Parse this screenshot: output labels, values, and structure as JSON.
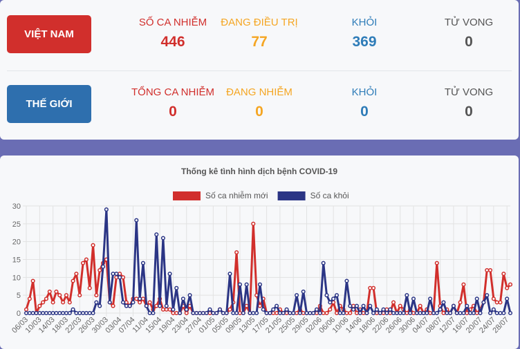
{
  "panel": {
    "rows": [
      {
        "label": "VIỆT NAM",
        "color": "#d12f2c",
        "stats": [
          {
            "label": "SỐ CA NHIỄM",
            "value": 446,
            "color": "#d12f2c"
          },
          {
            "label": "ĐANG ĐIỀU TRỊ",
            "value": 77,
            "color": "#f5a623"
          },
          {
            "label": "KHỎI",
            "value": 369,
            "color": "#2e7cb8"
          },
          {
            "label": "TỬ VONG",
            "value": 0,
            "color": "#555555"
          }
        ]
      },
      {
        "label": "THẾ GIỚI",
        "color": "#2e6fae",
        "stats": [
          {
            "label": "TỔNG CA NHIỄM",
            "value": 0,
            "color": "#d12f2c"
          },
          {
            "label": "ĐANG NHIỄM",
            "value": 0,
            "color": "#f5a623"
          },
          {
            "label": "KHỎI",
            "value": 0,
            "color": "#2e7cb8"
          },
          {
            "label": "TỬ VONG",
            "value": 0,
            "color": "#555555"
          }
        ]
      }
    ]
  },
  "chart_data": {
    "type": "line",
    "title": "Thống kê tình hình dịch bệnh COVID-19",
    "grid": true,
    "legend": "top",
    "ylim": [
      0,
      30
    ],
    "yticks": [
      0,
      5,
      10,
      15,
      20,
      25,
      30
    ],
    "categories": [
      "06/03",
      null,
      null,
      null,
      "10/03",
      null,
      null,
      null,
      "14/03",
      null,
      null,
      null,
      "18/03",
      null,
      null,
      null,
      "22/03",
      null,
      null,
      null,
      "26/03",
      null,
      null,
      null,
      "30/03",
      null,
      null,
      null,
      "03/04",
      null,
      null,
      null,
      "07/04",
      null,
      null,
      null,
      "11/04",
      null,
      null,
      null,
      "15/04",
      null,
      null,
      null,
      "19/04",
      null,
      null,
      null,
      "23/04",
      null,
      null,
      null,
      "27/04",
      null,
      null,
      null,
      "01/05",
      null,
      null,
      null,
      "05/05",
      null,
      null,
      null,
      "09/05",
      null,
      null,
      null,
      "13/05",
      null,
      null,
      null,
      "17/05",
      null,
      null,
      null,
      "21/05",
      null,
      null,
      null,
      "25/05",
      null,
      null,
      null,
      "29/05",
      null,
      null,
      null,
      "02/06",
      null,
      null,
      null,
      "06/06",
      null,
      null,
      null,
      "10/06",
      null,
      null,
      null,
      "14/06",
      null,
      null,
      null,
      "18/06",
      null,
      null,
      null,
      "22/06",
      null,
      null,
      null,
      "26/06",
      null,
      null,
      null,
      "30/06",
      null,
      null,
      null,
      "04/07",
      null,
      null,
      null,
      "08/07",
      null,
      null,
      null,
      "12/07",
      null,
      null,
      null,
      "16/07",
      null,
      null,
      null,
      "20/07",
      null,
      null,
      null,
      "24/07",
      null,
      null,
      null,
      "28/07",
      null
    ],
    "series": [
      {
        "name": "Số ca nhiễm mới",
        "color": "#d12f2c",
        "values": [
          1,
          4,
          9,
          0,
          2,
          3,
          4,
          6,
          3,
          6,
          5,
          3,
          5,
          3,
          9,
          11,
          5,
          14,
          15,
          7,
          19,
          5,
          12,
          14,
          15,
          3,
          2,
          10,
          11,
          10,
          3,
          2,
          4,
          4,
          3,
          4,
          2,
          3,
          1,
          2,
          4,
          1,
          1,
          1,
          0,
          0,
          0,
          2,
          0,
          2,
          0,
          0,
          0,
          0,
          0,
          0,
          0,
          0,
          1,
          0,
          0,
          1,
          3,
          17,
          0,
          0,
          2,
          0,
          25,
          5,
          2,
          4,
          0,
          0,
          0,
          0,
          1,
          0,
          0,
          0,
          0,
          0,
          1,
          0,
          0,
          0,
          0,
          0,
          2,
          0,
          0,
          1,
          3,
          0,
          2,
          1,
          0,
          0,
          2,
          0,
          1,
          0,
          0,
          7,
          7,
          0,
          0,
          0,
          1,
          0,
          3,
          0,
          2,
          1,
          0,
          1,
          0,
          0,
          2,
          0,
          1,
          0,
          0,
          14,
          2,
          0,
          1,
          0,
          2,
          0,
          3,
          8,
          0,
          1,
          2,
          0,
          1,
          3,
          12,
          12,
          4,
          3,
          3,
          11,
          7,
          8
        ]
      },
      {
        "name": "Số ca khỏi",
        "color": "#2b3585",
        "values": [
          0,
          0,
          0,
          0,
          0,
          0,
          0,
          0,
          0,
          0,
          0,
          0,
          0,
          0,
          1,
          0,
          0,
          0,
          0,
          0,
          0,
          3,
          2,
          13,
          29,
          3,
          11,
          11,
          10,
          3,
          2,
          2,
          3,
          26,
          4,
          14,
          2,
          0,
          0,
          22,
          2,
          21,
          2,
          11,
          1,
          7,
          0,
          4,
          1,
          5,
          0,
          0,
          0,
          0,
          0,
          1,
          0,
          0,
          1,
          0,
          0,
          11,
          0,
          0,
          8,
          0,
          8,
          0,
          0,
          0,
          8,
          1,
          0,
          0,
          1,
          2,
          0,
          0,
          1,
          0,
          0,
          5,
          0,
          6,
          0,
          0,
          0,
          1,
          0,
          14,
          5,
          3,
          4,
          5,
          0,
          0,
          9,
          2,
          1,
          2,
          0,
          2,
          0,
          2,
          0,
          1,
          0,
          1,
          0,
          1,
          0,
          0,
          0,
          0,
          5,
          0,
          4,
          0,
          0,
          0,
          0,
          4,
          0,
          0,
          1,
          3,
          0,
          0,
          2,
          0,
          0,
          0,
          2,
          0,
          0,
          4,
          0,
          3,
          5,
          0,
          1,
          0,
          0,
          0,
          4,
          0
        ]
      }
    ]
  }
}
